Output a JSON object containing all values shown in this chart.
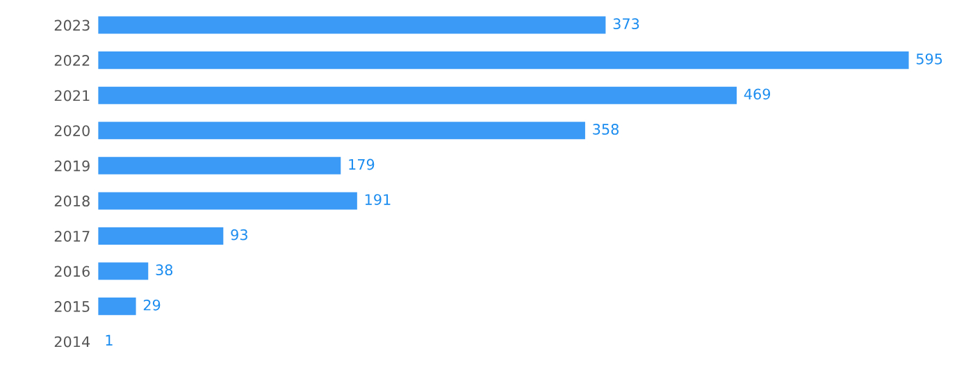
{
  "chart_data": {
    "type": "bar",
    "orientation": "horizontal",
    "categories": [
      "2023",
      "2022",
      "2021",
      "2020",
      "2019",
      "2018",
      "2017",
      "2016",
      "2015",
      "2014"
    ],
    "values": [
      373,
      595,
      469,
      358,
      179,
      191,
      93,
      38,
      29,
      1
    ],
    "color": "#3a9af5",
    "data_labels": true,
    "grid": false,
    "legend": false
  }
}
